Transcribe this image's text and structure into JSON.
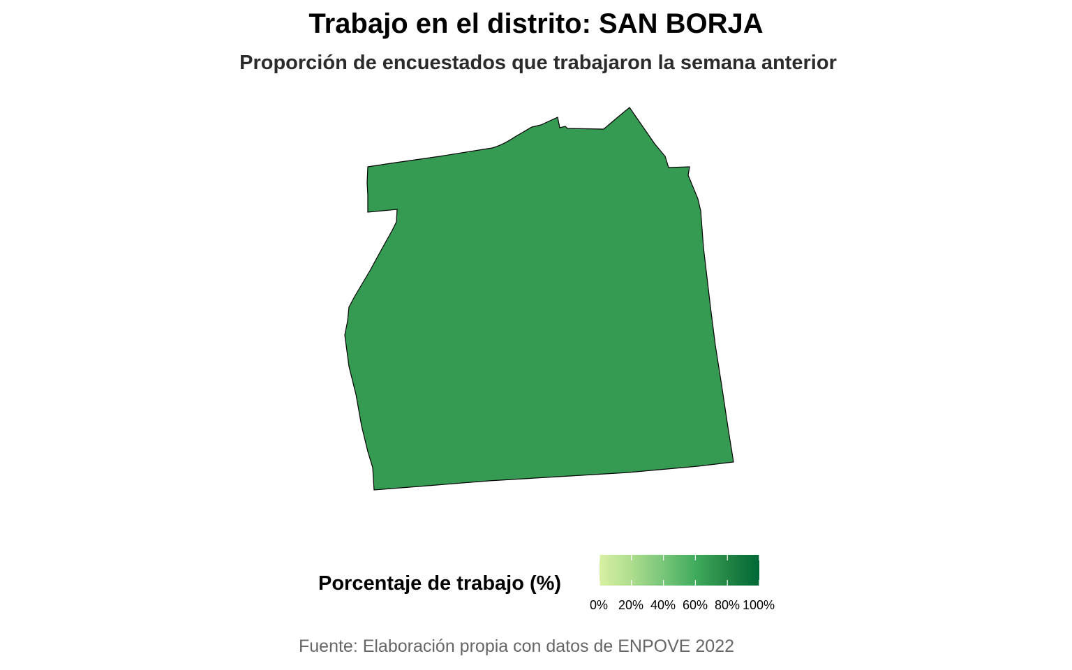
{
  "title": "Trabajo en el distrito: SAN BORJA",
  "subtitle": "Proporción de encuestados que trabajaron la semana anterior",
  "map": {
    "district": "SAN BORJA",
    "value_percent": 76,
    "fill_color": "#359a52",
    "border_color": "#000000"
  },
  "legend": {
    "title": "Porcentaje de trabajo (%)",
    "ticks": [
      "0%",
      "20%",
      "40%",
      "60%",
      "80%",
      "100%"
    ],
    "gradient_colors": [
      "#d9f0a3",
      "#addd8e",
      "#78c679",
      "#41ab5d",
      "#238443",
      "#006837"
    ]
  },
  "caption": "Fuente: Elaboración propia con datos de ENPOVE 2022"
}
